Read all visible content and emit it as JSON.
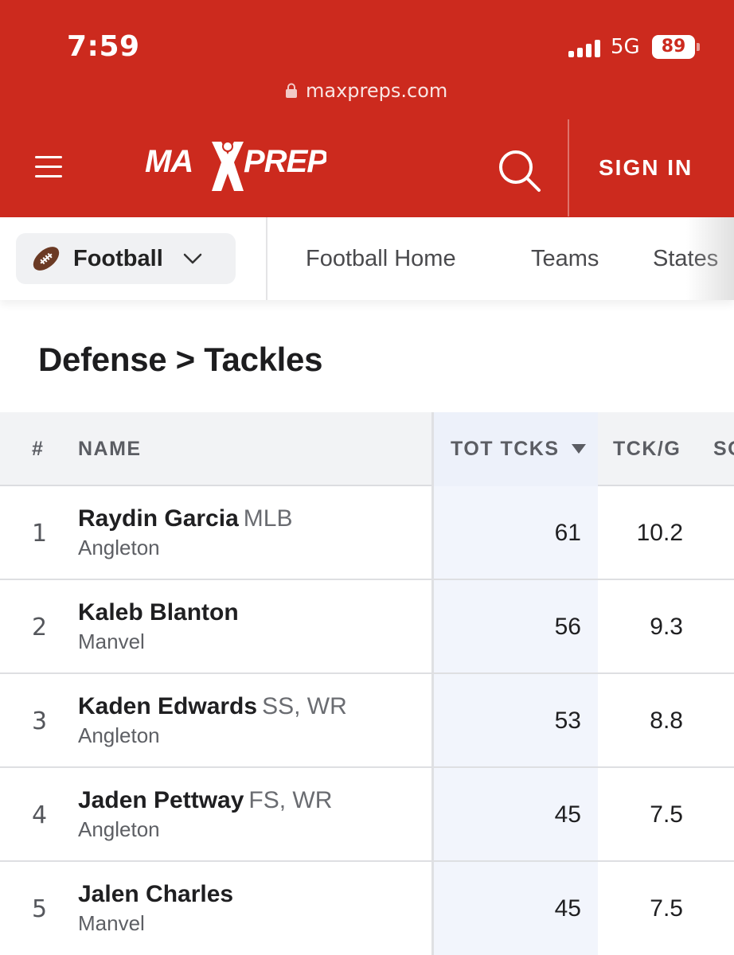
{
  "status_bar": {
    "time": "7:59",
    "network": "5G",
    "battery": "89"
  },
  "browser": {
    "url": "maxpreps.com"
  },
  "header": {
    "logo_text": "MAXPREPS",
    "signin_label": "SIGN IN"
  },
  "sport_selector": {
    "label": "Football"
  },
  "nav": {
    "items": [
      "Football Home",
      "Teams",
      "States"
    ]
  },
  "page": {
    "title": "Defense > Tackles"
  },
  "table": {
    "headers": {
      "rank": "#",
      "name": "NAME",
      "tot_tcks": "TOT TCKS",
      "tck_g": "TCK/G",
      "next": "SO"
    },
    "rows": [
      {
        "rank": "1",
        "name": "Raydin Garcia",
        "position": "MLB",
        "school": "Angleton",
        "tot": "61",
        "per_game": "10.2"
      },
      {
        "rank": "2",
        "name": "Kaleb Blanton",
        "position": "",
        "school": "Manvel",
        "tot": "56",
        "per_game": "9.3"
      },
      {
        "rank": "3",
        "name": "Kaden Edwards",
        "position": "SS, WR",
        "school": "Angleton",
        "tot": "53",
        "per_game": "8.8"
      },
      {
        "rank": "4",
        "name": "Jaden Pettway",
        "position": "FS, WR",
        "school": "Angleton",
        "tot": "45",
        "per_game": "7.5"
      },
      {
        "rank": "5",
        "name": "Jalen Charles",
        "position": "",
        "school": "Manvel",
        "tot": "45",
        "per_game": "7.5"
      }
    ]
  },
  "colors": {
    "brand_red": "#cc2a1e",
    "sorted_col": "#f2f5fc"
  }
}
